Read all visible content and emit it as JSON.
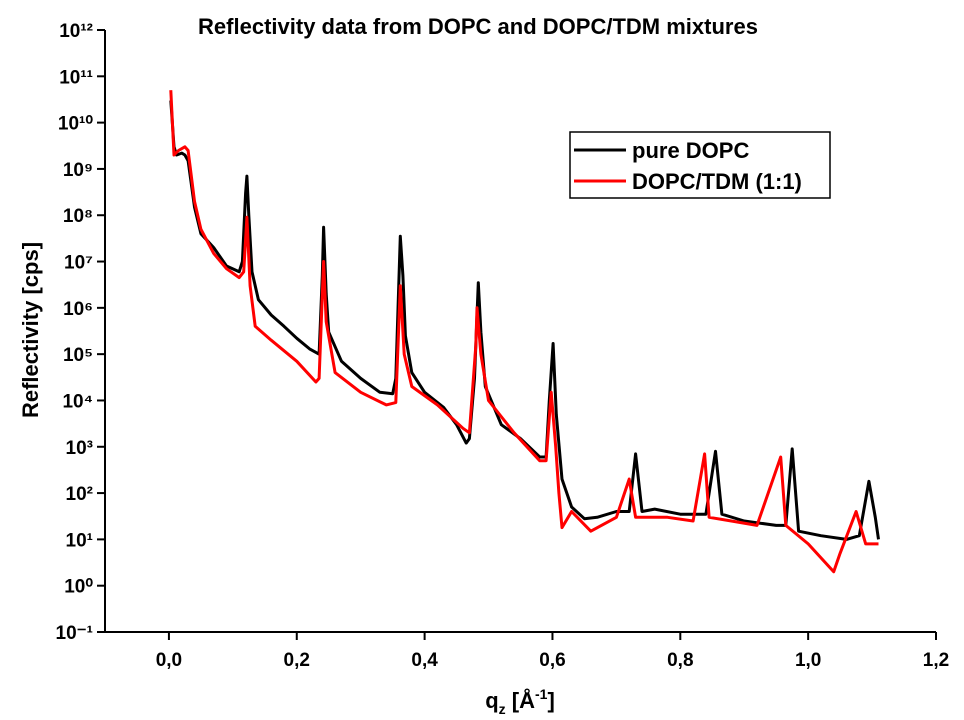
{
  "chart_data": {
    "type": "line",
    "title": "Reflectivity data from DOPC and DOPC/TDM mixtures",
    "x_label": [
      "q",
      "z",
      " [Å",
      "-1",
      "]"
    ],
    "y_label": "Reflectivity [cps]",
    "log_y": true,
    "legend": "upper right",
    "xlim": [
      -0.1,
      1.2
    ],
    "xticks": [
      {
        "value": 0,
        "label": "0,0"
      },
      {
        "value": 0.2,
        "label": "0,2"
      },
      {
        "value": 0.4,
        "label": "0,4"
      },
      {
        "value": 0.6,
        "label": "0,6"
      },
      {
        "value": 0.8,
        "label": "0,8"
      },
      {
        "value": 1.0,
        "label": "1,0"
      },
      {
        "value": 1.2,
        "label": "1,2"
      }
    ],
    "ylim": [
      0.1,
      1000000000000.0
    ],
    "yticks": [
      {
        "value": 0.1,
        "label": "10⁻¹"
      },
      {
        "value": 1,
        "label": "10⁰"
      },
      {
        "value": 10,
        "label": "10¹"
      },
      {
        "value": 100,
        "label": "10²"
      },
      {
        "value": 1000,
        "label": "10³"
      },
      {
        "value": 10000,
        "label": "10⁴"
      },
      {
        "value": 100000,
        "label": "10⁵"
      },
      {
        "value": 1000000,
        "label": "10⁶"
      },
      {
        "value": 10000000,
        "label": "10⁷"
      },
      {
        "value": 100000000,
        "label": "10⁸"
      },
      {
        "value": 1000000000,
        "label": "10⁹"
      },
      {
        "value": 10000000000,
        "label": "10¹⁰"
      },
      {
        "value": 100000000000,
        "label": "10¹¹"
      },
      {
        "value": 1000000000000,
        "label": "10¹²"
      }
    ],
    "series": [
      {
        "name": "pure DOPC",
        "color": "#000000",
        "x": [
          0.003,
          0.008,
          0.012,
          0.02,
          0.025,
          0.03,
          0.04,
          0.05,
          0.07,
          0.09,
          0.11,
          0.115,
          0.12,
          0.122,
          0.125,
          0.13,
          0.14,
          0.16,
          0.18,
          0.2,
          0.22,
          0.235,
          0.24,
          0.242,
          0.246,
          0.25,
          0.27,
          0.3,
          0.33,
          0.35,
          0.355,
          0.362,
          0.366,
          0.37,
          0.38,
          0.4,
          0.43,
          0.45,
          0.465,
          0.47,
          0.478,
          0.484,
          0.488,
          0.495,
          0.52,
          0.55,
          0.58,
          0.59,
          0.595,
          0.601,
          0.606,
          0.615,
          0.63,
          0.65,
          0.67,
          0.7,
          0.72,
          0.73,
          0.74,
          0.76,
          0.8,
          0.84,
          0.855,
          0.865,
          0.9,
          0.95,
          0.965,
          0.975,
          0.985,
          1.02,
          1.06,
          1.08,
          1.095,
          1.105,
          1.11
        ],
        "values": [
          30000000000.0,
          3000000000.0,
          2000000000.0,
          2200000000.0,
          2000000000.0,
          1500000000.0,
          150000000.0,
          40000000.0,
          20000000.0,
          8000000.0,
          6000000.0,
          10000000.0,
          300000000.0,
          700000000.0,
          100000000.0,
          6000000.0,
          1500000.0,
          700000.0,
          400000.0,
          220000.0,
          130000.0,
          100000.0,
          5000000.0,
          55000000.0,
          2000000.0,
          300000.0,
          70000.0,
          30000.0,
          15000.0,
          14000.0,
          30000.0,
          35000000.0,
          5000000.0,
          250000.0,
          40000.0,
          15000.0,
          7000.0,
          3000.0,
          1200.0,
          1500.0,
          30000.0,
          3500000.0,
          300000.0,
          20000.0,
          3000.0,
          1500.0,
          600.0,
          600.0,
          10000.0,
          170000.0,
          5000.0,
          200.0,
          50.0,
          28.0,
          30.0,
          40.0,
          40.0,
          700.0,
          40.0,
          45.0,
          35.0,
          35.0,
          800.0,
          35.0,
          25.0,
          20.0,
          20.0,
          900.0,
          15.0,
          12.0,
          10.0,
          12.0,
          180.0,
          30.0,
          10.0
        ]
      },
      {
        "name": "DOPC/TDM (1:1)",
        "color": "#ff0000",
        "x": [
          0.003,
          0.008,
          0.015,
          0.025,
          0.03,
          0.04,
          0.05,
          0.07,
          0.09,
          0.11,
          0.117,
          0.122,
          0.127,
          0.135,
          0.16,
          0.2,
          0.23,
          0.235,
          0.242,
          0.246,
          0.26,
          0.3,
          0.34,
          0.355,
          0.362,
          0.368,
          0.38,
          0.42,
          0.46,
          0.47,
          0.48,
          0.482,
          0.488,
          0.5,
          0.54,
          0.58,
          0.59,
          0.598,
          0.605,
          0.61,
          0.615,
          0.63,
          0.66,
          0.7,
          0.72,
          0.73,
          0.78,
          0.82,
          0.838,
          0.845,
          0.88,
          0.92,
          0.957,
          0.965,
          1.0,
          1.04,
          1.05,
          1.075,
          1.09,
          1.11
        ],
        "values": [
          50000000000.0,
          2000000000.0,
          2500000000.0,
          3000000000.0,
          2500000000.0,
          200000000.0,
          50000000.0,
          15000000.0,
          7000000.0,
          4500000.0,
          6000000.0,
          90000000.0,
          3000000.0,
          400000.0,
          200000.0,
          70000.0,
          25000.0,
          30000.0,
          10000000.0,
          500000.0,
          40000.0,
          15000.0,
          8000.0,
          9000.0,
          3000000.0,
          100000.0,
          20000.0,
          8000.0,
          2500.0,
          2000.0,
          150000.0,
          1000000.0,
          100000.0,
          10000.0,
          2000.0,
          500.0,
          500.0,
          15000.0,
          1000.0,
          100.0,
          18.0,
          40.0,
          15.0,
          30.0,
          200.0,
          30.0,
          30.0,
          25.0,
          700.0,
          30.0,
          25.0,
          20.0,
          600.0,
          20.0,
          8,
          2,
          5,
          40.0,
          8,
          8
        ]
      }
    ]
  }
}
